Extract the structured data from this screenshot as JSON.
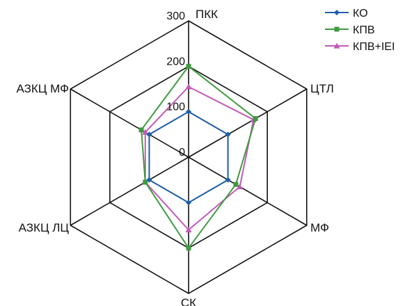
{
  "chart_data": {
    "type": "radar",
    "axes": [
      "ПКК",
      "ЦТЛ",
      "МФ",
      "СК",
      "АЗКЦ ЛЦ",
      "АЗКЦ МФ"
    ],
    "range": [
      0,
      300
    ],
    "ticks": [
      0,
      100,
      200,
      300
    ],
    "tick_labels": [
      "0",
      "100",
      "200",
      "300"
    ],
    "grid": true,
    "legend_position": "top-right",
    "series": [
      {
        "name": "КО",
        "color": "#1f5fa8",
        "marker": "diamond",
        "values": [
          100,
          100,
          100,
          100,
          100,
          100
        ]
      },
      {
        "name": "КПВ",
        "color": "#3f9a3f",
        "marker": "square",
        "values": [
          200,
          170,
          120,
          200,
          110,
          120
        ]
      },
      {
        "name": "КПВ+IEI",
        "color": "#c25ab8",
        "marker": "triangle",
        "values": [
          155,
          165,
          130,
          160,
          110,
          110
        ]
      }
    ]
  }
}
